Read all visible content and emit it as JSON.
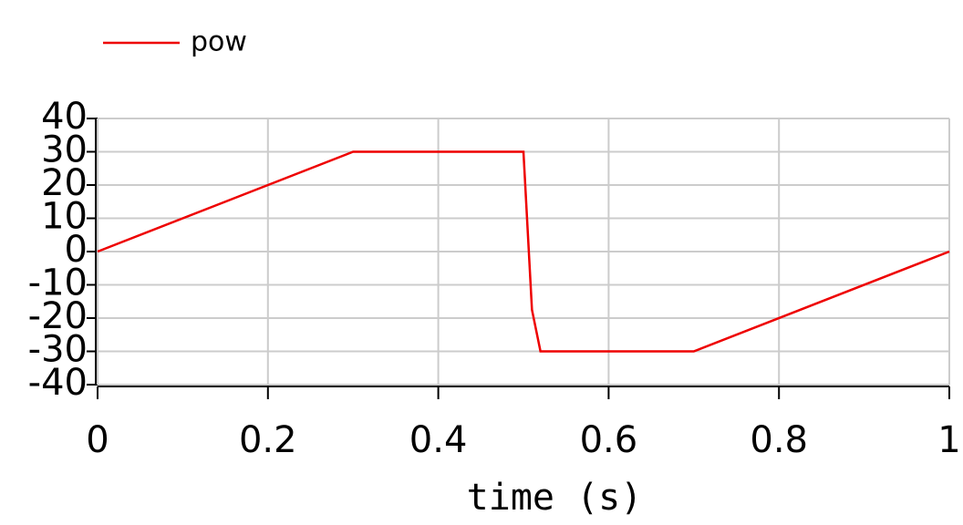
{
  "chart_data": {
    "type": "line",
    "x": [
      0,
      0.3,
      0.5,
      0.51,
      0.52,
      0.7,
      1
    ],
    "series": [
      {
        "name": "pow",
        "color": "#ee0000",
        "values": [
          0,
          30,
          30,
          -17.5,
          -30,
          -30,
          0
        ]
      }
    ],
    "xlabel": "time (s)",
    "xlim": [
      0,
      1
    ],
    "xticks": [
      0,
      0.2,
      0.4,
      0.6,
      0.8,
      1
    ],
    "ylim": [
      -40,
      40
    ],
    "yticks": [
      -40,
      -30,
      -20,
      -10,
      0,
      10,
      20,
      30,
      40
    ],
    "grid": true,
    "legend": "top left"
  }
}
